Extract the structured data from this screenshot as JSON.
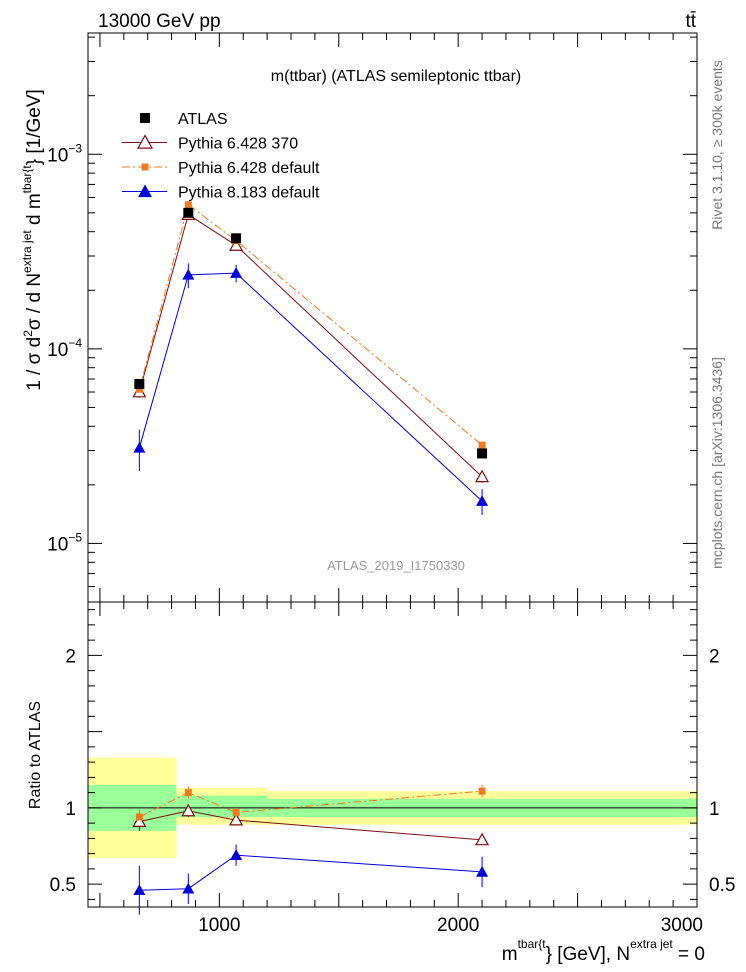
{
  "header": {
    "energy_label": "13000 GeV pp",
    "process_label": "tt̄"
  },
  "side_labels": {
    "rivet": "Rivet 3.1.10, ≥ 300k events",
    "mcplots": "mcplots.cern.ch [arXiv:1306.3436]"
  },
  "chart_data": {
    "type": "scatter",
    "title": "m(ttbar) (ATLAS semileptonic ttbar)",
    "analysis_id": "ATLAS_2019_I1750330",
    "ylabel": {
      "main": "1 / σ d",
      "sup1": "2",
      "mid1": "σ / d N",
      "sup2": "extra jet",
      "mid2": " d m",
      "sup3": "tbar{t",
      "end": "} [1/GeV]"
    },
    "xlabel": {
      "pre": "m",
      "sup1": "tbar{t",
      "mid": "} [GeV], N",
      "sup2": "extra jet",
      "end": " = 0"
    },
    "ratio_ylabel": "Ratio to ATLAS",
    "xlim": [
      450,
      3000
    ],
    "ylim": [
      5e-06,
      0.0042
    ],
    "ratio_ylim": [
      0.35,
      2.35
    ],
    "x_ticks": [
      {
        "value": 1000,
        "label": "1000"
      },
      {
        "value": 2000,
        "label": "2000"
      },
      {
        "value": 3000,
        "label": "3000"
      }
    ],
    "y_ticks": [
      {
        "value": 1e-05,
        "base": "10",
        "exp": "−5"
      },
      {
        "value": 0.0001,
        "base": "10",
        "exp": "−4"
      },
      {
        "value": 0.001,
        "base": "10",
        "exp": "−3"
      }
    ],
    "ratio_ticks": [
      {
        "value": 0.5,
        "label": "0.5"
      },
      {
        "value": 1,
        "label": "1"
      },
      {
        "value": 2,
        "label": "2"
      }
    ],
    "bins": [
      {
        "lo": 450,
        "hi": 820,
        "band1": [
          0.85,
          1.15
        ],
        "band2": [
          0.67,
          1.33
        ]
      },
      {
        "lo": 820,
        "hi": 980,
        "band1": [
          0.94,
          1.08
        ],
        "band2": [
          0.89,
          1.13
        ]
      },
      {
        "lo": 980,
        "hi": 1200,
        "band1": [
          0.94,
          1.08
        ],
        "band2": [
          0.89,
          1.13
        ]
      },
      {
        "lo": 1200,
        "hi": 3000,
        "band1": [
          0.94,
          1.06
        ],
        "band2": [
          0.89,
          1.11
        ]
      }
    ],
    "series": [
      {
        "name": "ATLAS",
        "marker": "square",
        "color": "#000000",
        "line": "none",
        "x": [
          665,
          870,
          1070,
          2100
        ],
        "y": [
          6.6e-05,
          0.0005,
          0.00037,
          2.9e-05
        ],
        "ratio": [
          1,
          1,
          1,
          1
        ],
        "yerr": [
          0,
          0,
          0,
          0
        ],
        "ratio_err": [
          0,
          0,
          0,
          0
        ]
      },
      {
        "name": "Pythia 6.428 370",
        "marker": "triangle-open",
        "color": "#7a0e12",
        "line": "solid",
        "x": [
          665,
          870,
          1070,
          2100
        ],
        "y": [
          6e-05,
          0.00049,
          0.00034,
          2.2e-05
        ],
        "ratio": [
          0.91,
          0.98,
          0.92,
          0.79
        ],
        "yerr": [
          4e-06,
          2.5e-05,
          2e-05,
          1.5e-06
        ],
        "ratio_err": [
          0.06,
          0.04,
          0.03,
          0.03
        ]
      },
      {
        "name": "Pythia 6.428 default",
        "marker": "square-small",
        "color": "#f07a22",
        "line": "dashdot",
        "x": [
          665,
          870,
          1070,
          2100
        ],
        "y": [
          6.2e-05,
          0.00055,
          0.00036,
          3.2e-05
        ],
        "ratio": [
          0.94,
          1.1,
          0.97,
          1.11
        ],
        "yerr": [
          3e-06,
          2e-05,
          2e-05,
          1.2e-06
        ],
        "ratio_err": [
          0.05,
          0.04,
          0.03,
          0.04
        ]
      },
      {
        "name": "Pythia 8.183 default",
        "marker": "triangle-filled",
        "color": "#0000dd",
        "line": "solid",
        "x": [
          665,
          870,
          1070,
          2100
        ],
        "y": [
          3.1e-05,
          0.00024,
          0.000245,
          1.65e-05
        ],
        "ratio": [
          0.46,
          0.47,
          0.69,
          0.58
        ],
        "yerr": [
          7.5e-06,
          3.5e-05,
          2.5e-05,
          2.5e-06
        ],
        "ratio_err": [
          0.16,
          0.1,
          0.07,
          0.1
        ]
      }
    ]
  }
}
